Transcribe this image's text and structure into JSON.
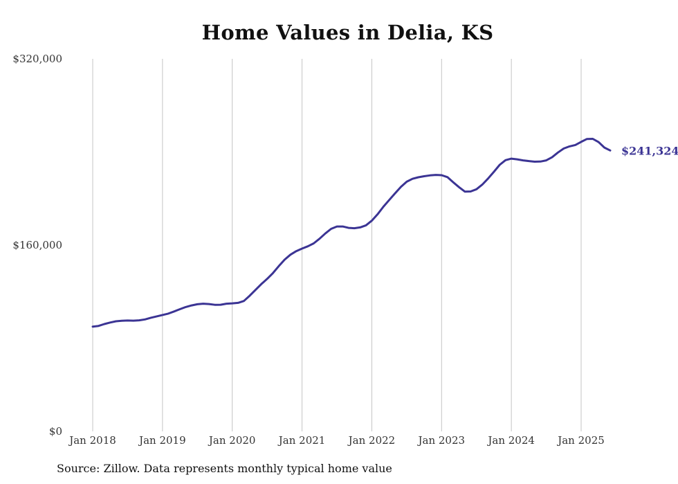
{
  "chart_data": {
    "type": "line",
    "title": "Home Values in Delia, KS",
    "xlabel": "",
    "ylabel": "",
    "ylim": [
      0,
      320000
    ],
    "y_ticks": [
      0,
      160000,
      320000
    ],
    "y_tick_labels": [
      "$0",
      "$160,000",
      "$320,000"
    ],
    "x_ticks": [
      "2018-01",
      "2019-01",
      "2020-01",
      "2021-01",
      "2022-01",
      "2023-01",
      "2024-01",
      "2025-01"
    ],
    "x_tick_labels": [
      "Jan 2018",
      "Jan 2019",
      "Jan 2020",
      "Jan 2021",
      "Jan 2022",
      "Jan 2023",
      "Jan 2024",
      "Jan 2025"
    ],
    "grid": {
      "vertical": true,
      "horizontal": false
    },
    "series": [
      {
        "color": "#3b3494",
        "end_label": "$241,324",
        "points": [
          [
            "2018-01",
            90000
          ],
          [
            "2018-02",
            90600
          ],
          [
            "2018-03",
            92200
          ],
          [
            "2018-04",
            93500
          ],
          [
            "2018-05",
            94600
          ],
          [
            "2018-06",
            95000
          ],
          [
            "2018-07",
            95200
          ],
          [
            "2018-08",
            95100
          ],
          [
            "2018-09",
            95400
          ],
          [
            "2018-10",
            96200
          ],
          [
            "2018-11",
            97600
          ],
          [
            "2018-12",
            98800
          ],
          [
            "2019-01",
            100000
          ],
          [
            "2019-02",
            101200
          ],
          [
            "2019-03",
            103000
          ],
          [
            "2019-04",
            105000
          ],
          [
            "2019-05",
            106800
          ],
          [
            "2019-06",
            108200
          ],
          [
            "2019-07",
            109200
          ],
          [
            "2019-08",
            109700
          ],
          [
            "2019-09",
            109400
          ],
          [
            "2019-10",
            108700
          ],
          [
            "2019-11",
            108800
          ],
          [
            "2019-12",
            109700
          ],
          [
            "2020-01",
            110000
          ],
          [
            "2020-02",
            110400
          ],
          [
            "2020-03",
            112000
          ],
          [
            "2020-04",
            116500
          ],
          [
            "2020-05",
            121500
          ],
          [
            "2020-06",
            126500
          ],
          [
            "2020-07",
            131000
          ],
          [
            "2020-08",
            136000
          ],
          [
            "2020-09",
            142000
          ],
          [
            "2020-10",
            147500
          ],
          [
            "2020-11",
            151800
          ],
          [
            "2020-12",
            154800
          ],
          [
            "2021-01",
            157000
          ],
          [
            "2021-02",
            159000
          ],
          [
            "2021-03",
            161500
          ],
          [
            "2021-04",
            165500
          ],
          [
            "2021-05",
            170000
          ],
          [
            "2021-06",
            174000
          ],
          [
            "2021-07",
            176000
          ],
          [
            "2021-08",
            176000
          ],
          [
            "2021-09",
            174800
          ],
          [
            "2021-10",
            174500
          ],
          [
            "2021-11",
            175200
          ],
          [
            "2021-12",
            177000
          ],
          [
            "2022-01",
            181000
          ],
          [
            "2022-02",
            186500
          ],
          [
            "2022-03",
            193000
          ],
          [
            "2022-04",
            198800
          ],
          [
            "2022-05",
            204500
          ],
          [
            "2022-06",
            210000
          ],
          [
            "2022-07",
            214500
          ],
          [
            "2022-08",
            217000
          ],
          [
            "2022-09",
            218300
          ],
          [
            "2022-10",
            219200
          ],
          [
            "2022-11",
            219900
          ],
          [
            "2022-12",
            220300
          ],
          [
            "2023-01",
            220100
          ],
          [
            "2023-02",
            218400
          ],
          [
            "2023-03",
            214000
          ],
          [
            "2023-04",
            209800
          ],
          [
            "2023-05",
            206000
          ],
          [
            "2023-06",
            206100
          ],
          [
            "2023-07",
            208000
          ],
          [
            "2023-08",
            212000
          ],
          [
            "2023-09",
            217200
          ],
          [
            "2023-10",
            223000
          ],
          [
            "2023-11",
            229000
          ],
          [
            "2023-12",
            233000
          ],
          [
            "2024-01",
            234300
          ],
          [
            "2024-02",
            233700
          ],
          [
            "2024-03",
            232800
          ],
          [
            "2024-04",
            232200
          ],
          [
            "2024-05",
            231700
          ],
          [
            "2024-06",
            231800
          ],
          [
            "2024-07",
            232800
          ],
          [
            "2024-08",
            235500
          ],
          [
            "2024-09",
            239500
          ],
          [
            "2024-10",
            243000
          ],
          [
            "2024-11",
            244800
          ],
          [
            "2024-12",
            246000
          ],
          [
            "2025-01",
            248700
          ],
          [
            "2025-02",
            251200
          ],
          [
            "2025-03",
            251300
          ],
          [
            "2025-04",
            248500
          ],
          [
            "2025-05",
            243800
          ],
          [
            "2025-06",
            241324
          ]
        ]
      }
    ]
  },
  "source_note": "Source: Zillow. Data represents monthly typical home value"
}
